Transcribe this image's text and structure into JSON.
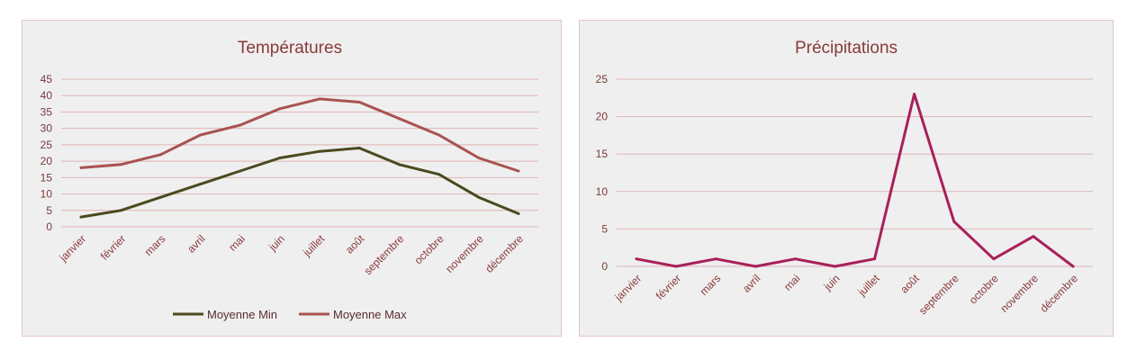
{
  "chart_data": [
    {
      "type": "line",
      "title": "Températures",
      "categories": [
        "janvier",
        "février",
        "mars",
        "avril",
        "mai",
        "juin",
        "juillet",
        "août",
        "septembre",
        "octobre",
        "novembre",
        "décembre"
      ],
      "ylim": [
        0,
        45
      ],
      "yticks": [
        0,
        5,
        10,
        15,
        20,
        25,
        30,
        35,
        40,
        45
      ],
      "grid": true,
      "legend": "bottom",
      "series": [
        {
          "name": "Moyenne Min",
          "color": "#4a4a1e",
          "values": [
            3,
            5,
            9,
            13,
            17,
            21,
            23,
            24,
            19,
            16,
            9,
            4
          ]
        },
        {
          "name": "Moyenne Max",
          "color": "#a85252",
          "values": [
            18,
            19,
            22,
            28,
            31,
            36,
            39,
            38,
            33,
            28,
            21,
            17
          ]
        }
      ]
    },
    {
      "type": "line",
      "title": "Précipitations",
      "categories": [
        "janvier",
        "février",
        "mars",
        "avril",
        "mai",
        "juin",
        "juillet",
        "août",
        "septembre",
        "octobre",
        "novembre",
        "décembre"
      ],
      "ylim": [
        0,
        25
      ],
      "yticks": [
        0,
        5,
        10,
        15,
        20,
        25
      ],
      "grid": true,
      "series": [
        {
          "color": "#a8205a",
          "values": [
            1,
            0,
            1,
            0,
            1,
            0,
            1,
            23,
            6,
            1,
            4,
            0
          ]
        }
      ]
    }
  ],
  "style": {
    "grid_color": "#e2b4b4",
    "axis_color": "#d8a4a4"
  }
}
